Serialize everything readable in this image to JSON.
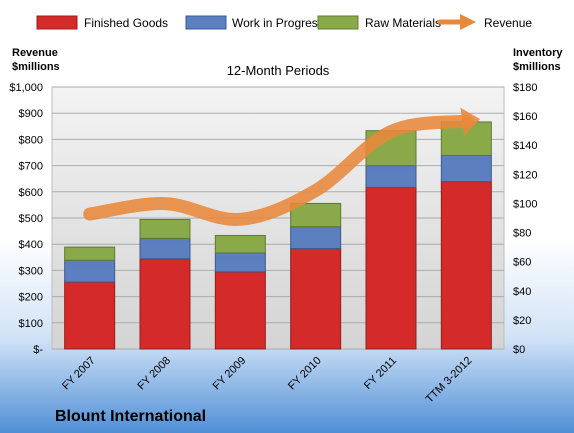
{
  "chart_data": {
    "type": "bar",
    "subtitle": "12-Month Periods",
    "company": "Blount International",
    "categories": [
      "FY 2007",
      "FY 2008",
      "FY 2009",
      "FY 2010",
      "FY 2011",
      "TTM 3-2012"
    ],
    "series": [
      {
        "name": "Finished Goods",
        "axis": "right",
        "color": "#d42a2a",
        "values": [
          46,
          62,
          53,
          69,
          111,
          115
        ]
      },
      {
        "name": "Work in Progress",
        "axis": "right",
        "color": "#5c7fc0",
        "values": [
          15,
          14,
          13,
          15,
          15,
          18
        ]
      },
      {
        "name": "Raw Materials",
        "axis": "right",
        "color": "#8aaa4a",
        "values": [
          9,
          13,
          12,
          16,
          24,
          23
        ]
      },
      {
        "name": "Revenue",
        "type": "line",
        "axis": "left",
        "color": "#e8883a",
        "values": [
          515,
          555,
          495,
          605,
          830,
          870
        ]
      }
    ],
    "left_axis": {
      "title_line1": "Revenue",
      "title_line2": "$millions",
      "range": [
        0,
        1000
      ],
      "tick_labels": [
        "$-",
        "$100",
        "$200",
        "$300",
        "$400",
        "$500",
        "$600",
        "$700",
        "$800",
        "$900",
        "$1,000"
      ]
    },
    "right_axis": {
      "title_line1": "Inventory",
      "title_line2": "$millions",
      "range": [
        0,
        180
      ],
      "tick_labels": [
        "$0",
        "$20",
        "$40",
        "$60",
        "$80",
        "$100",
        "$120",
        "$140",
        "$160",
        "$180"
      ]
    },
    "grid": true,
    "legend_position": "top"
  }
}
